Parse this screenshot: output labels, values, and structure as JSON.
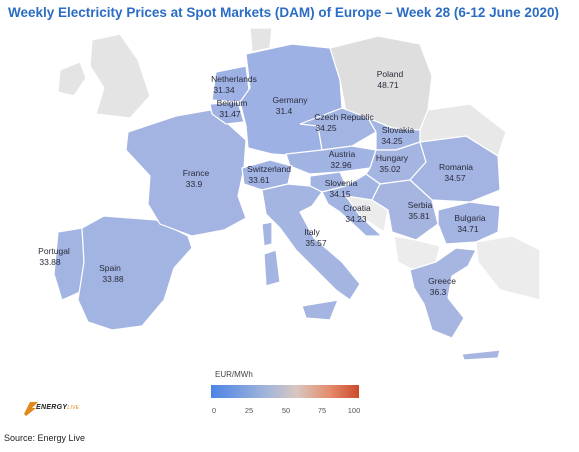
{
  "title": "Weekly Electricity Prices at Spot Markets (DAM) of Europe – Week 28 (6-12 June 2020)",
  "source": "Source: Energy Live",
  "logo": {
    "text": "ENERGY",
    "sub": "LIVE"
  },
  "legend": {
    "title": "EUR/MWh",
    "ticks": [
      "0",
      "25",
      "50",
      "75",
      "100"
    ]
  },
  "colors": {
    "low": "#4c84e6",
    "mid": "#a9b8d8",
    "high": "#cc4a2c",
    "nodata": "#dcdcdc",
    "map_fill": "#a7b6e4"
  },
  "countries": [
    {
      "name": "Netherlands",
      "price": "31.34"
    },
    {
      "name": "Belgium",
      "price": "31.47"
    },
    {
      "name": "Germany",
      "price": "31.4"
    },
    {
      "name": "Poland",
      "price": "48.71"
    },
    {
      "name": "Czech Republic",
      "price": "34.25"
    },
    {
      "name": "Slovakia",
      "price": "34.25"
    },
    {
      "name": "Austria",
      "price": "32.96"
    },
    {
      "name": "Hungary",
      "price": "35.02"
    },
    {
      "name": "Romania",
      "price": "34.57"
    },
    {
      "name": "France",
      "price": "33.9"
    },
    {
      "name": "Switzerland",
      "price": "33.61"
    },
    {
      "name": "Slovenia",
      "price": "34.15"
    },
    {
      "name": "Croatia",
      "price": "34.23"
    },
    {
      "name": "Serbia",
      "price": "35.81"
    },
    {
      "name": "Bulgaria",
      "price": "34.71"
    },
    {
      "name": "Portugal",
      "price": "33.88"
    },
    {
      "name": "Spain",
      "price": "33.88"
    },
    {
      "name": "Italy",
      "price": "35.57"
    },
    {
      "name": "Greece",
      "price": "36.3"
    }
  ]
}
